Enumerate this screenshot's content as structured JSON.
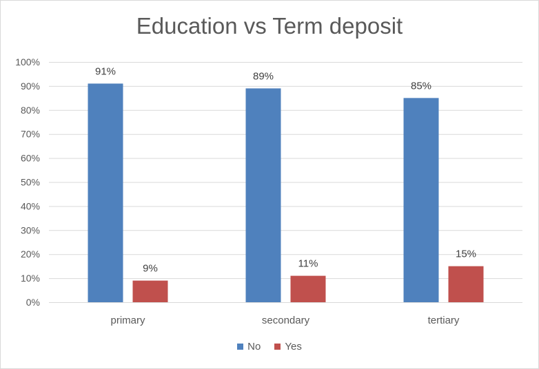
{
  "chart_data": {
    "type": "bar",
    "title": "Education vs Term deposit",
    "xlabel": "",
    "ylabel": "",
    "categories": [
      "primary",
      "secondary",
      "tertiary"
    ],
    "series": [
      {
        "name": "No",
        "values": [
          91,
          89,
          85
        ],
        "labels": [
          "91%",
          "89%",
          "85%"
        ],
        "color": "#4f81bd"
      },
      {
        "name": "Yes",
        "values": [
          9,
          11,
          15
        ],
        "labels": [
          "9%",
          "11%",
          "15%"
        ],
        "color": "#c0504d"
      }
    ],
    "ylim": [
      0,
      100
    ],
    "yticks": [
      0,
      10,
      20,
      30,
      40,
      50,
      60,
      70,
      80,
      90,
      100
    ],
    "ytick_labels": [
      "0%",
      "10%",
      "20%",
      "30%",
      "40%",
      "50%",
      "60%",
      "70%",
      "80%",
      "90%",
      "100%"
    ],
    "grid": true,
    "legend_position": "bottom"
  }
}
